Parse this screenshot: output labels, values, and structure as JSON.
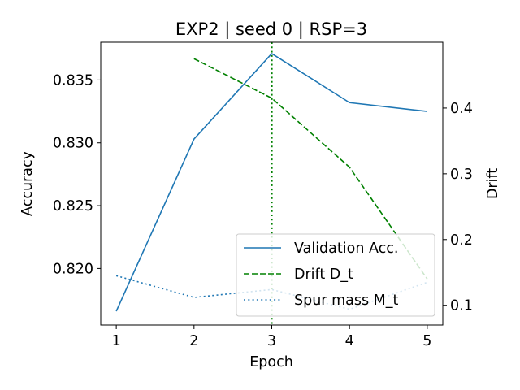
{
  "chart_data": {
    "type": "line",
    "title": "EXP2 | seed 0 | RSP=3",
    "xlabel": "Epoch",
    "ylabel": "Accuracy",
    "y2label": "Drift",
    "xlim": [
      0.8,
      5.2
    ],
    "ylim": [
      0.8155,
      0.838
    ],
    "y2lim": [
      0.07,
      0.5
    ],
    "x": [
      1,
      2,
      3,
      4,
      5
    ],
    "xticks": [
      "1",
      "2",
      "3",
      "4",
      "5"
    ],
    "yticks": [
      "0.820",
      "0.825",
      "0.830",
      "0.835"
    ],
    "y2ticks": [
      "0.1",
      "0.2",
      "0.3",
      "0.4"
    ],
    "vline": {
      "x": 3,
      "color": "#008000",
      "style": "dotted"
    },
    "series": [
      {
        "name": "Validation Acc.",
        "axis": "left",
        "style": "solid",
        "color": "#1f77b4",
        "values": [
          0.8166,
          0.8303,
          0.8371,
          0.8332,
          0.8325
        ]
      },
      {
        "name": "Drift D_t",
        "axis": "right",
        "style": "dashed",
        "color": "#008000",
        "values": [
          null,
          0.475,
          0.415,
          0.31,
          0.14
        ]
      },
      {
        "name": "Spur mass M_t",
        "axis": "right",
        "style": "dotted",
        "color": "#1f77b4",
        "values": [
          0.145,
          0.112,
          0.124,
          0.094,
          0.135
        ]
      }
    ],
    "legend": [
      "Validation Acc.",
      "Drift D_t",
      "Spur mass M_t"
    ],
    "legend_position": "lower-right"
  }
}
